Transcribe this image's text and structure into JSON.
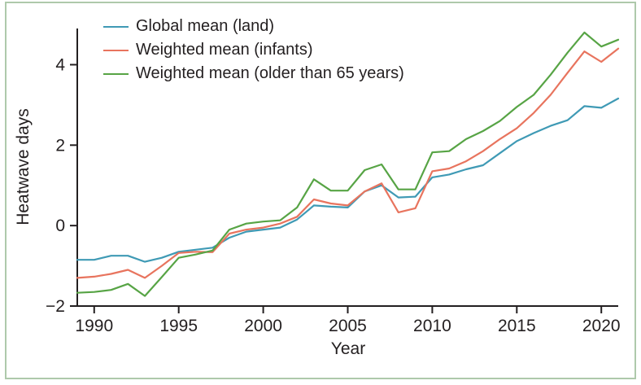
{
  "figure": {
    "border_color": "#aec9ab",
    "background": "#ffffff",
    "text_color": "#231f20"
  },
  "chart_data": {
    "type": "line",
    "title": "",
    "xlabel": "Year",
    "ylabel": "Heatwave days",
    "x_range": [
      1989,
      2021
    ],
    "y_range": [
      -2,
      4.9
    ],
    "x_ticks": [
      1990,
      1995,
      2000,
      2005,
      2010,
      2015,
      2020
    ],
    "y_ticks": [
      -2,
      0,
      2,
      4
    ],
    "grid": false,
    "legend_position": "top-left",
    "years": [
      1989,
      1990,
      1991,
      1992,
      1993,
      1994,
      1995,
      1996,
      1997,
      1998,
      1999,
      2000,
      2001,
      2002,
      2003,
      2004,
      2005,
      2006,
      2007,
      2008,
      2009,
      2010,
      2011,
      2012,
      2013,
      2014,
      2015,
      2016,
      2017,
      2018,
      2019,
      2020,
      2021
    ],
    "series": [
      {
        "name": "Global mean (land)",
        "color": "#3f9ab5",
        "values": [
          -0.85,
          -0.85,
          -0.75,
          -0.75,
          -0.9,
          -0.8,
          -0.65,
          -0.6,
          -0.55,
          -0.3,
          -0.15,
          -0.1,
          -0.05,
          0.15,
          0.5,
          0.47,
          0.45,
          0.85,
          1.0,
          0.7,
          0.72,
          1.2,
          1.27,
          1.4,
          1.5,
          1.8,
          2.1,
          2.3,
          2.48,
          2.62,
          2.97,
          2.93,
          3.16
        ]
      },
      {
        "name": "Weighted mean (infants)",
        "color": "#e8745e",
        "values": [
          -1.3,
          -1.27,
          -1.2,
          -1.1,
          -1.3,
          -1.0,
          -0.68,
          -0.65,
          -0.66,
          -0.2,
          -0.1,
          -0.05,
          0.05,
          0.22,
          0.65,
          0.55,
          0.5,
          0.85,
          1.05,
          0.33,
          0.43,
          1.35,
          1.42,
          1.6,
          1.85,
          2.15,
          2.42,
          2.8,
          3.25,
          3.8,
          4.33,
          4.07,
          4.4
        ]
      },
      {
        "name": "Weighted mean (older than 65 years)",
        "color": "#57a445",
        "values": [
          -1.67,
          -1.65,
          -1.6,
          -1.45,
          -1.75,
          -1.28,
          -0.8,
          -0.72,
          -0.62,
          -0.1,
          0.05,
          0.1,
          0.13,
          0.45,
          1.15,
          0.87,
          0.87,
          1.38,
          1.52,
          0.9,
          0.9,
          1.82,
          1.85,
          2.15,
          2.35,
          2.6,
          2.95,
          3.25,
          3.75,
          4.3,
          4.8,
          4.45,
          4.62
        ]
      }
    ]
  }
}
